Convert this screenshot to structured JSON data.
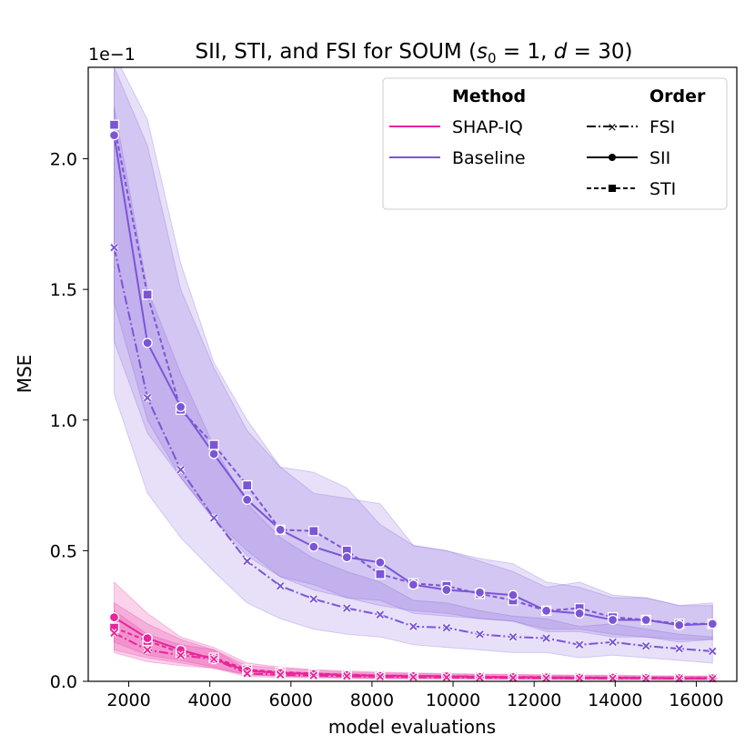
{
  "chart_data": {
    "type": "line",
    "title": "SII, STI, and FSI for SOUM (s₀ = 1, d = 30)",
    "title_prefix": "SII, STI, and FSI for SOUM (",
    "title_s": "s",
    "title_sub": "0",
    "title_mid": " = 1, ",
    "title_d": "d",
    "title_end": " = 30)",
    "xlabel": "model evaluations",
    "ylabel": "MSE",
    "y_scale_label": "1e−1",
    "xlim": [
      1000,
      17000
    ],
    "ylim": [
      0,
      2.35
    ],
    "xticks": [
      2000,
      4000,
      6000,
      8000,
      10000,
      12000,
      14000,
      16000
    ],
    "yticks": [
      0.0,
      0.5,
      1.0,
      1.5,
      2.0
    ],
    "ytick_labels": [
      "0.0",
      "0.5",
      "1.0",
      "1.5",
      "2.0"
    ],
    "x": [
      1640,
      2460,
      3280,
      4100,
      4920,
      5740,
      6560,
      7380,
      8200,
      9020,
      9840,
      10660,
      11480,
      12300,
      13120,
      13940,
      14760,
      15580,
      16400
    ],
    "colors": {
      "shapiq": "#e8259a",
      "baseline": "#7b55d6"
    },
    "legend": {
      "method_title": "Method",
      "order_title": "Order",
      "methods": [
        "SHAP-IQ",
        "Baseline"
      ],
      "orders": [
        "FSI",
        "SII",
        "STI"
      ]
    },
    "series": [
      {
        "name": "Baseline STI",
        "method": "baseline",
        "order": "STI",
        "values": [
          2.13,
          1.48,
          1.04,
          0.905,
          0.75,
          0.58,
          0.575,
          0.5,
          0.41,
          0.375,
          0.365,
          0.335,
          0.31,
          0.27,
          0.28,
          0.245,
          0.235,
          0.22,
          0.22
        ],
        "band_low": [
          1.45,
          1.0,
          0.78,
          0.62,
          0.5,
          0.4,
          0.37,
          0.32,
          0.29,
          0.27,
          0.26,
          0.24,
          0.23,
          0.2,
          0.2,
          0.18,
          0.17,
          0.16,
          0.16
        ],
        "band_high": [
          2.4,
          2.15,
          1.6,
          1.22,
          1.0,
          0.82,
          0.8,
          0.74,
          0.6,
          0.52,
          0.5,
          0.46,
          0.42,
          0.36,
          0.38,
          0.33,
          0.32,
          0.29,
          0.3
        ]
      },
      {
        "name": "Baseline SII",
        "method": "baseline",
        "order": "SII",
        "values": [
          2.09,
          1.295,
          1.05,
          0.87,
          0.695,
          0.58,
          0.515,
          0.475,
          0.455,
          0.37,
          0.35,
          0.34,
          0.33,
          0.27,
          0.26,
          0.235,
          0.235,
          0.215,
          0.22
        ],
        "band_low": [
          1.3,
          0.95,
          0.78,
          0.62,
          0.48,
          0.4,
          0.35,
          0.32,
          0.31,
          0.26,
          0.25,
          0.24,
          0.23,
          0.19,
          0.19,
          0.17,
          0.17,
          0.15,
          0.16
        ],
        "band_high": [
          2.35,
          2.05,
          1.5,
          1.2,
          0.96,
          0.82,
          0.72,
          0.7,
          0.68,
          0.52,
          0.5,
          0.47,
          0.45,
          0.38,
          0.36,
          0.32,
          0.32,
          0.29,
          0.29
        ]
      },
      {
        "name": "Baseline FSI",
        "method": "baseline",
        "order": "FSI",
        "values": [
          1.66,
          1.085,
          0.81,
          0.625,
          0.46,
          0.365,
          0.315,
          0.28,
          0.255,
          0.21,
          0.205,
          0.18,
          0.17,
          0.165,
          0.14,
          0.15,
          0.135,
          0.125,
          0.115
        ],
        "band_low": [
          1.1,
          0.72,
          0.55,
          0.42,
          0.3,
          0.24,
          0.2,
          0.18,
          0.17,
          0.14,
          0.13,
          0.12,
          0.11,
          0.11,
          0.09,
          0.1,
          0.09,
          0.08,
          0.07
        ],
        "band_high": [
          2.2,
          1.5,
          1.18,
          0.9,
          0.68,
          0.55,
          0.47,
          0.42,
          0.38,
          0.31,
          0.3,
          0.27,
          0.25,
          0.24,
          0.21,
          0.22,
          0.2,
          0.18,
          0.17
        ]
      },
      {
        "name": "SHAP-IQ STI",
        "method": "shapiq",
        "order": "STI",
        "values": [
          0.205,
          0.155,
          0.11,
          0.09,
          0.045,
          0.035,
          0.03,
          0.025,
          0.022,
          0.02,
          0.02,
          0.018,
          0.017,
          0.016,
          0.015,
          0.015,
          0.014,
          0.013,
          0.013
        ],
        "band_low": [
          0.12,
          0.09,
          0.07,
          0.05,
          0.025,
          0.02,
          0.017,
          0.014,
          0.012,
          0.011,
          0.011,
          0.01,
          0.009,
          0.009,
          0.008,
          0.008,
          0.008,
          0.007,
          0.007
        ],
        "band_high": [
          0.38,
          0.26,
          0.17,
          0.13,
          0.07,
          0.055,
          0.045,
          0.04,
          0.035,
          0.032,
          0.03,
          0.028,
          0.027,
          0.025,
          0.024,
          0.024,
          0.022,
          0.021,
          0.021
        ]
      },
      {
        "name": "SHAP-IQ SII",
        "method": "shapiq",
        "order": "SII",
        "values": [
          0.245,
          0.165,
          0.12,
          0.085,
          0.04,
          0.032,
          0.028,
          0.024,
          0.021,
          0.02,
          0.019,
          0.017,
          0.016,
          0.015,
          0.014,
          0.014,
          0.013,
          0.012,
          0.012
        ],
        "band_low": [
          0.15,
          0.1,
          0.08,
          0.055,
          0.025,
          0.02,
          0.017,
          0.014,
          0.012,
          0.011,
          0.011,
          0.01,
          0.009,
          0.009,
          0.008,
          0.008,
          0.008,
          0.007,
          0.007
        ],
        "band_high": [
          0.3,
          0.22,
          0.16,
          0.12,
          0.06,
          0.05,
          0.042,
          0.036,
          0.032,
          0.03,
          0.028,
          0.026,
          0.025,
          0.023,
          0.022,
          0.022,
          0.02,
          0.019,
          0.019
        ]
      },
      {
        "name": "SHAP-IQ FSI",
        "method": "shapiq",
        "order": "FSI",
        "values": [
          0.185,
          0.12,
          0.1,
          0.085,
          0.03,
          0.025,
          0.022,
          0.02,
          0.018,
          0.016,
          0.015,
          0.014,
          0.013,
          0.012,
          0.012,
          0.011,
          0.011,
          0.01,
          0.01
        ],
        "band_low": [
          0.11,
          0.075,
          0.06,
          0.05,
          0.018,
          0.015,
          0.013,
          0.012,
          0.01,
          0.009,
          0.009,
          0.008,
          0.008,
          0.007,
          0.007,
          0.006,
          0.006,
          0.006,
          0.006
        ],
        "band_high": [
          0.27,
          0.18,
          0.14,
          0.12,
          0.045,
          0.038,
          0.033,
          0.03,
          0.027,
          0.025,
          0.023,
          0.021,
          0.02,
          0.019,
          0.018,
          0.017,
          0.017,
          0.016,
          0.016
        ]
      }
    ]
  }
}
